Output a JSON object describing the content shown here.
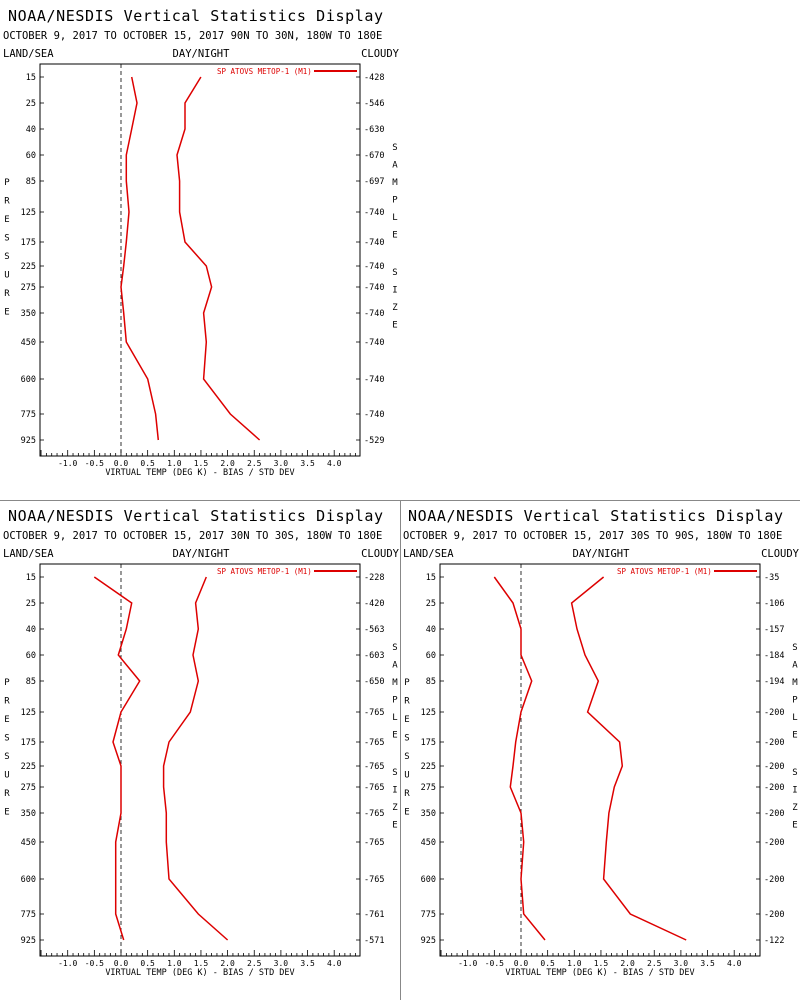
{
  "display_title": "NOAA/NESDIS Vertical Statistics Display",
  "labels": {
    "land_sea": "LAND/SEA",
    "day_night": "DAY/NIGHT",
    "cloudy": "CLOUDY",
    "pressure_letters": [
      "P",
      "R",
      "E",
      "S",
      "S",
      "U",
      "R",
      "E"
    ],
    "sample_letters": [
      "S",
      "A",
      "M",
      "P",
      "L",
      "E"
    ],
    "size_letters": [
      "S",
      "I",
      "Z",
      "E"
    ],
    "xlabel": "VIRTUAL TEMP (DEG K) - BIAS / STD DEV",
    "legend": "SP ATOVS METOP-1 (M1)"
  },
  "colors": {
    "series": "#dd0000",
    "divider": "#888888"
  },
  "chart_data": [
    {
      "type": "line",
      "subtitle": "OCTOBER 9, 2017 TO OCTOBER 15, 2017 90N TO 30N, 180W TO 180E",
      "pressure_levels": [
        15,
        25,
        40,
        60,
        85,
        125,
        175,
        225,
        275,
        350,
        450,
        600,
        775,
        925
      ],
      "sample_size": [
        428,
        546,
        630,
        670,
        697,
        740,
        740,
        740,
        740,
        740,
        740,
        740,
        740,
        529
      ],
      "series": [
        {
          "name": "BIAS",
          "values": [
            0.2,
            0.3,
            0.2,
            0.1,
            0.1,
            0.15,
            0.1,
            0.05,
            0.0,
            0.05,
            0.1,
            0.5,
            0.65,
            0.7
          ]
        },
        {
          "name": "STD DEV",
          "values": [
            1.5,
            1.2,
            1.2,
            1.05,
            1.1,
            1.1,
            1.2,
            1.6,
            1.7,
            1.55,
            1.6,
            1.55,
            2.05,
            2.6
          ]
        }
      ],
      "xlim": [
        -1.5,
        4.5
      ],
      "xticks": [
        "-1.0",
        "-0.5",
        "0.0",
        "0.5",
        "1.0",
        "1.5",
        "2.0",
        "2.5",
        "3.0",
        "3.5",
        "4.0"
      ]
    },
    {
      "type": "line",
      "subtitle": "OCTOBER 9, 2017 TO OCTOBER 15, 2017 30N TO 30S, 180W TO 180E",
      "pressure_levels": [
        15,
        25,
        40,
        60,
        85,
        125,
        175,
        225,
        275,
        350,
        450,
        600,
        775,
        925
      ],
      "sample_size": [
        228,
        420,
        563,
        603,
        650,
        765,
        765,
        765,
        765,
        765,
        765,
        765,
        761,
        571
      ],
      "series": [
        {
          "name": "BIAS",
          "values": [
            -0.5,
            0.2,
            0.1,
            -0.05,
            0.35,
            0.0,
            -0.15,
            0.0,
            0.0,
            0.0,
            -0.1,
            -0.1,
            -0.1,
            0.05
          ]
        },
        {
          "name": "STD DEV",
          "values": [
            1.6,
            1.4,
            1.45,
            1.35,
            1.45,
            1.3,
            0.9,
            0.8,
            0.8,
            0.85,
            0.85,
            0.9,
            1.45,
            2.0
          ]
        }
      ],
      "xlim": [
        -1.5,
        4.5
      ],
      "xticks": [
        "-1.0",
        "-0.5",
        "0.0",
        "0.5",
        "1.0",
        "1.5",
        "2.0",
        "2.5",
        "3.0",
        "3.5",
        "4.0"
      ]
    },
    {
      "type": "line",
      "subtitle": "OCTOBER 9, 2017 TO OCTOBER 15, 2017 30S TO 90S, 180W TO 180E",
      "pressure_levels": [
        15,
        25,
        40,
        60,
        85,
        125,
        175,
        225,
        275,
        350,
        450,
        600,
        775,
        925
      ],
      "sample_size": [
        35,
        106,
        157,
        184,
        194,
        200,
        200,
        200,
        200,
        200,
        200,
        200,
        200,
        122
      ],
      "series": [
        {
          "name": "BIAS",
          "values": [
            -0.5,
            -0.15,
            0.0,
            0.0,
            0.2,
            0.0,
            -0.1,
            -0.15,
            -0.2,
            0.0,
            0.05,
            0.0,
            0.05,
            0.45
          ]
        },
        {
          "name": "STD DEV",
          "values": [
            1.55,
            0.95,
            1.05,
            1.2,
            1.45,
            1.25,
            1.85,
            1.9,
            1.75,
            1.65,
            1.6,
            1.55,
            2.05,
            3.1
          ]
        }
      ],
      "xlim": [
        -1.5,
        4.5
      ],
      "xticks": [
        "-1.0",
        "-0.5",
        "0.0",
        "0.5",
        "1.0",
        "1.5",
        "2.0",
        "2.5",
        "3.0",
        "3.5",
        "4.0"
      ]
    }
  ]
}
